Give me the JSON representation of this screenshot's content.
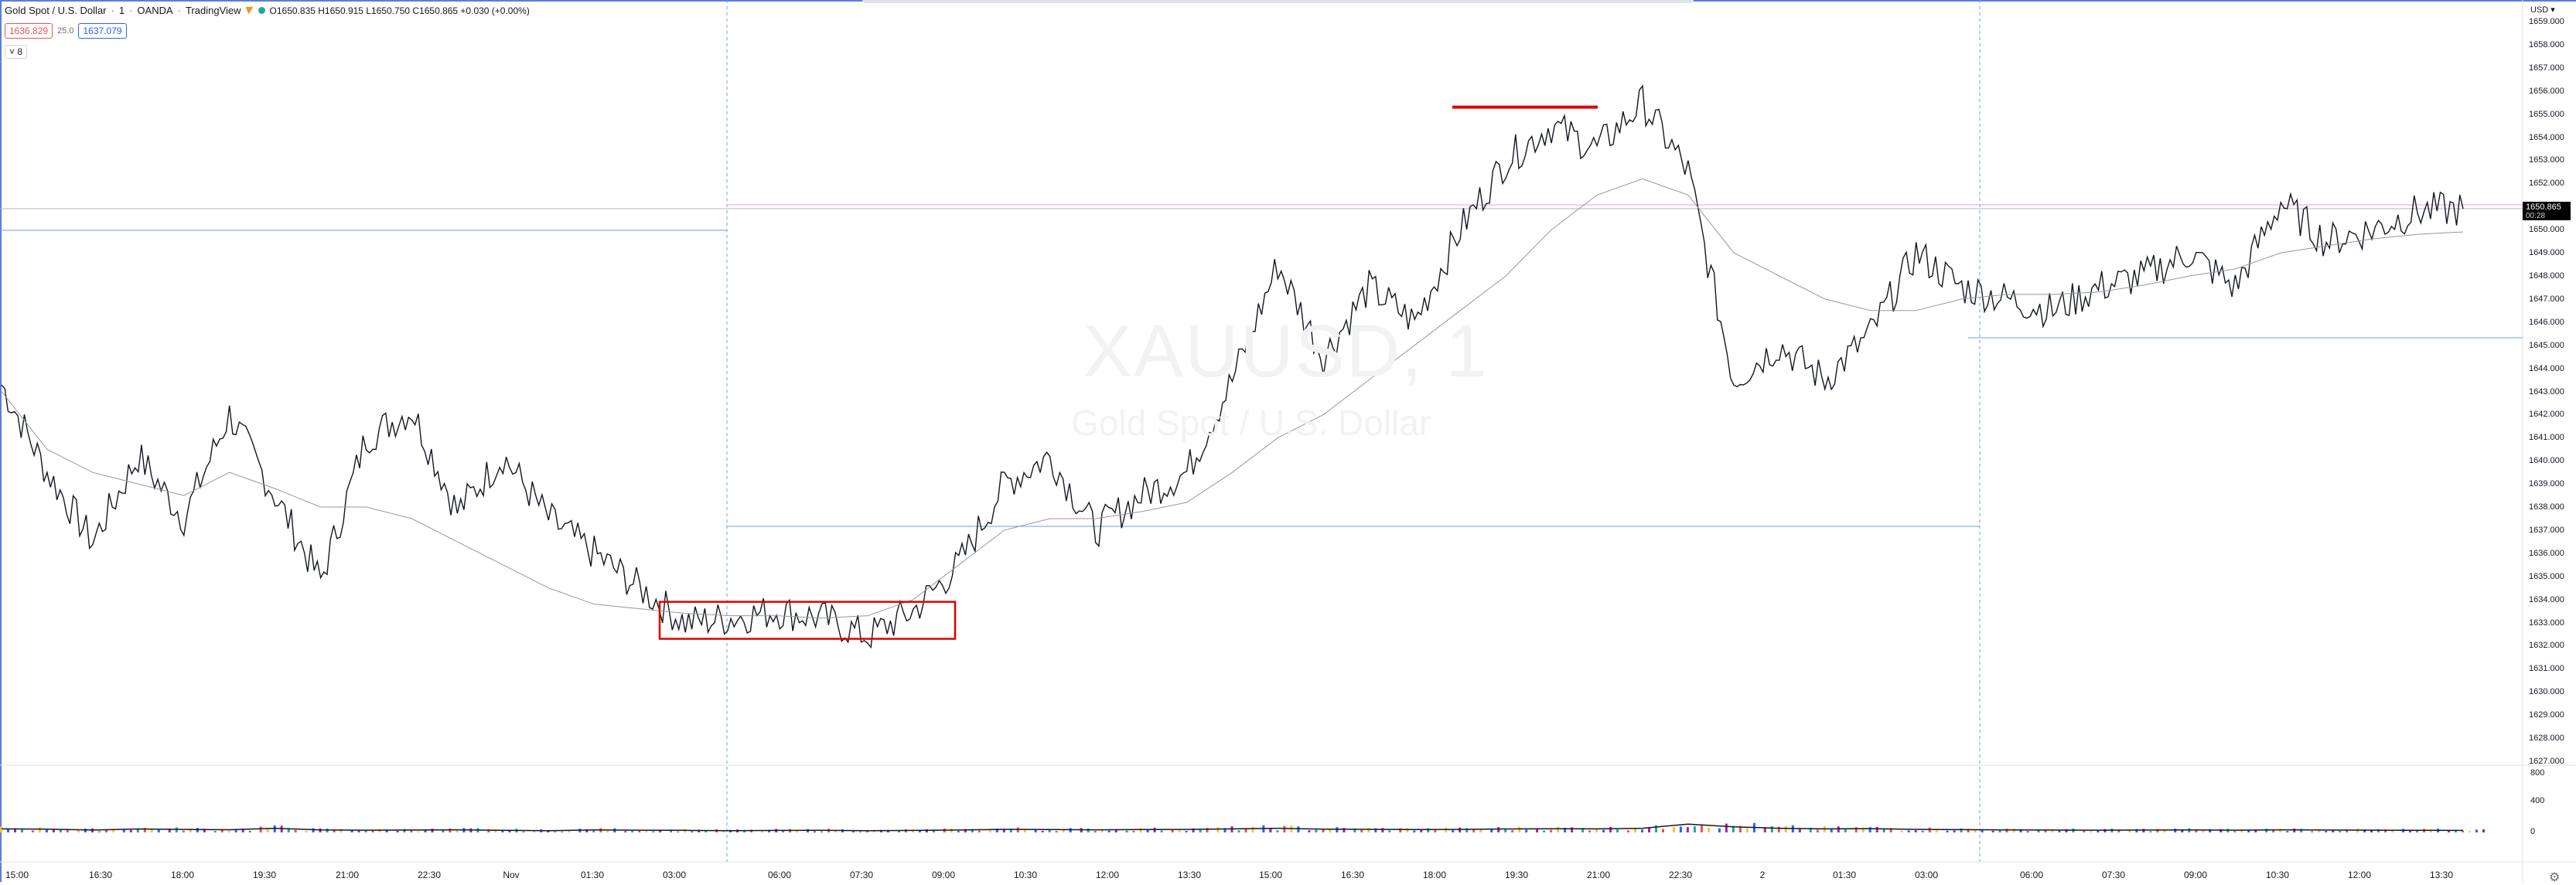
{
  "header": {
    "symbol": "Gold Spot / U.S. Dollar",
    "interval": "1",
    "broker": "OANDA",
    "platform": "TradingView",
    "ohlc": "O1650.835 H1650.915 L1650.750 C1650.865 +0.030 (+0.00%)"
  },
  "trade": {
    "sell_price": "1636.829",
    "spread": "25.0",
    "buy_price": "1637.079"
  },
  "indicator_toggle": "8",
  "watermark": {
    "ticker": "XAUUSD, 1",
    "name": "Gold Spot / U.S. Dollar"
  },
  "price_axis": {
    "currency": "USD",
    "ticks": [
      "1659.000",
      "1658.000",
      "1657.000",
      "1656.000",
      "1655.000",
      "1654.000",
      "1653.000",
      "1652.000",
      "1651.000",
      "1650.000",
      "1649.000",
      "1648.000",
      "1647.000",
      "1646.000",
      "1645.000",
      "1644.000",
      "1643.000",
      "1642.000",
      "1641.000",
      "1640.000",
      "1639.000",
      "1638.000",
      "1637.000",
      "1636.000",
      "1635.000",
      "1634.000",
      "1633.000",
      "1632.000",
      "1631.000",
      "1630.000",
      "1629.000",
      "1628.000",
      "1627.000"
    ],
    "current_price": "1650.865",
    "countdown": "00:28"
  },
  "volume_axis": {
    "ticks": [
      "800",
      "400",
      "0"
    ]
  },
  "time_axis": {
    "ticks": [
      "15:00",
      "16:30",
      "18:00",
      "19:30",
      "21:00",
      "22:30",
      "Nov",
      "01:30",
      "03:00",
      "06:00",
      "07:30",
      "09:00",
      "10:30",
      "12:00",
      "13:30",
      "15:00",
      "16:30",
      "18:00",
      "19:30",
      "21:00",
      "22:30",
      "2",
      "01:30",
      "03:00",
      "06:00",
      "07:30",
      "09:00",
      "10:30",
      "12:00",
      "13:30"
    ]
  },
  "chart_data": {
    "type": "line",
    "title": "XAUUSD, 1",
    "series": [
      {
        "name": "Close",
        "values": [
          1643.3,
          1639.5,
          1636.5,
          1640.2,
          1637.5,
          1642.0,
          1638.5,
          1634.8,
          1641.0,
          1642.2,
          1637.8,
          1640.2,
          1637.5,
          1636.0,
          1634.5,
          1633.0,
          1633.2,
          1633.5,
          1633.2,
          1632.4,
          1633.5,
          1635.5,
          1639.0,
          1640.2,
          1637.0,
          1638.5,
          1639.5,
          1643.5,
          1648.5,
          1644.5,
          1647.5,
          1646.0,
          1650.0,
          1653.0,
          1654.5,
          1653.5,
          1655.5,
          1652.5,
          1643.5,
          1645.0,
          1643.5,
          1645.5,
          1649.0,
          1647.5,
          1647.0,
          1646.5,
          1647.5,
          1648.0,
          1649.0,
          1647.5,
          1651.2,
          1649.5,
          1650.0,
          1650.8,
          1650.9
        ]
      },
      {
        "name": "Moving Average",
        "values": [
          1643.0,
          1640.5,
          1639.5,
          1639.0,
          1638.5,
          1639.5,
          1638.8,
          1638.0,
          1638.0,
          1637.5,
          1636.5,
          1635.5,
          1634.5,
          1633.8,
          1633.6,
          1633.4,
          1633.3,
          1633.3,
          1633.2,
          1633.3,
          1634.0,
          1635.5,
          1637.0,
          1637.5,
          1637.5,
          1637.8,
          1638.2,
          1639.5,
          1641.0,
          1642.0,
          1643.5,
          1645.0,
          1646.5,
          1648.0,
          1650.0,
          1651.5,
          1652.2,
          1651.5,
          1649.0,
          1648.0,
          1647.0,
          1646.5,
          1646.5,
          1647.0,
          1647.2,
          1647.2,
          1647.3,
          1647.6,
          1648.0,
          1648.3,
          1649.0,
          1649.3,
          1649.6,
          1649.8,
          1649.9
        ]
      }
    ],
    "volume_values": [
      60,
      55,
      40,
      58,
      50,
      45,
      70,
      42,
      38,
      40,
      44,
      35,
      30,
      42,
      38,
      35,
      30,
      34,
      36,
      30,
      34,
      40,
      52,
      48,
      44,
      48,
      50,
      60,
      70,
      55,
      52,
      48,
      50,
      58,
      62,
      60,
      70,
      140,
      95,
      70,
      60,
      64,
      52,
      46,
      42,
      40,
      38,
      40,
      42,
      38,
      44,
      40,
      38,
      36,
      34
    ],
    "ylim": [
      1627,
      1659
    ],
    "annotations": [
      "resistance line near 1655.3",
      "consolidation box 1632.3-1633.9"
    ]
  }
}
